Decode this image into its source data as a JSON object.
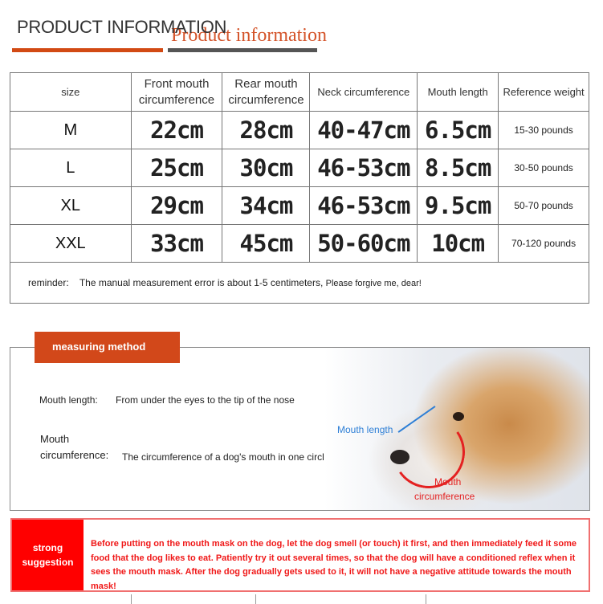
{
  "header": {
    "title": "PRODUCT INFORMATION",
    "subtitle": "Product information"
  },
  "table": {
    "headers": [
      "size",
      "Front mouth circumference",
      "Rear mouth circumference",
      "Neck circumference",
      "Mouth length",
      "Reference weight"
    ],
    "rows": [
      [
        "M",
        "22cm",
        "28cm",
        "40-47cm",
        "6.5cm",
        "15-30 pounds"
      ],
      [
        "L",
        "25cm",
        "30cm",
        "46-53cm",
        "8.5cm",
        "30-50 pounds"
      ],
      [
        "XL",
        "29cm",
        "34cm",
        "46-53cm",
        "9.5cm",
        "50-70 pounds"
      ],
      [
        "XXL",
        "33cm",
        "45cm",
        "50-60cm",
        "10cm",
        "70-120 pounds"
      ]
    ],
    "reminder_label": "reminder:",
    "reminder_text": "The manual measurement error is about 1-5 centimeters,",
    "reminder_extra": "Please forgive me, dear!"
  },
  "measuring": {
    "tag": "measuring method",
    "mouth_length_label": "Mouth length:",
    "mouth_length_text": "From under the eyes to the tip of the nose",
    "mouth_circ_label_1": "Mouth",
    "mouth_circ_label_2": "circumference:",
    "mouth_circ_text": "The circumference of a dog's mouth in one circle",
    "image_label_length": "Mouth length",
    "image_label_circ_1": "Mouth",
    "image_label_circ_2": "circumference"
  },
  "suggestion": {
    "label_1": "strong",
    "label_2": "suggestion",
    "text": "Before putting on the mouth mask on the dog, let the dog smell (or touch) it first, and then immediately feed it some food that the dog likes to eat. Patiently try it out several times, so that the dog will have a conditioned reflex when it sees the mouth mask. After the dog gradually gets used to it, it will not have a negative attitude towards the mouth mask!"
  },
  "colors": {
    "accent": "#d2481a",
    "warning": "#ff0000",
    "length_marker": "#2e7fd6"
  }
}
